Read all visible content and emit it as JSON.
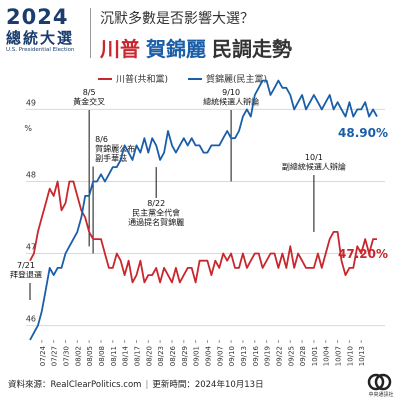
{
  "header": {
    "logo_year": "2024",
    "logo_title": "總統大選",
    "logo_sub": "U.S. Presidential Election",
    "subtitle": "沉默多數是否影響大選？",
    "title_trump": "川普",
    "title_harris": "賀錦麗",
    "title_rest": "民調走勢"
  },
  "footer": {
    "source": "資料來源：RealClearPolitics.com",
    "updated": "更新時間：2024年10月13日",
    "logo_text": "中央通訊社"
  },
  "colors": {
    "trump": "#c8272d",
    "harris": "#1a5ea8",
    "grid": "#d9d9d9",
    "text": "#333333"
  },
  "chart_data": {
    "type": "line",
    "title": "",
    "xlabel": "",
    "ylabel": "%",
    "ylim": [
      45.8,
      49.2
    ],
    "yticks": [
      46,
      47,
      48,
      49
    ],
    "grid": true,
    "legend_position": "top-left",
    "x_ticks": [
      "07/24",
      "07/27",
      "07/30",
      "08/02",
      "08/05",
      "08/08",
      "08/11",
      "08/14",
      "08/17",
      "08/20",
      "08/23",
      "08/26",
      "08/29",
      "09/01",
      "09/04",
      "09/07",
      "09/10",
      "09/13",
      "09/16",
      "09/19",
      "09/22",
      "09/25",
      "09/28",
      "10/01",
      "10/04",
      "10/07",
      "10/10",
      "10/13"
    ],
    "x_start": "07/21",
    "series": [
      {
        "name": "川普(共和黨)",
        "color": "#c8272d",
        "end_label": "47.20%",
        "values": [
          46.9,
          47.0,
          47.3,
          47.5,
          47.7,
          47.9,
          47.8,
          48.0,
          47.6,
          47.7,
          48.0,
          48.0,
          47.8,
          47.6,
          47.5,
          47.3,
          47.2,
          47.2,
          47.2,
          47.0,
          46.8,
          46.8,
          47.0,
          46.9,
          46.7,
          46.9,
          46.6,
          46.7,
          46.9,
          46.6,
          46.7,
          46.7,
          46.8,
          46.6,
          46.8,
          46.7,
          46.6,
          46.8,
          46.6,
          46.7,
          46.8,
          46.8,
          46.6,
          46.9,
          46.9,
          46.9,
          46.7,
          46.9,
          46.8,
          47.0,
          46.9,
          47.0,
          46.8,
          46.8,
          47.0,
          46.8,
          46.9,
          47.0,
          47.0,
          46.8,
          46.9,
          47.0,
          47.0,
          46.8,
          47.0,
          46.8,
          47.1,
          46.8,
          47.0,
          46.9,
          46.8,
          46.8,
          46.8,
          47.0,
          46.8,
          47.0,
          47.2,
          47.3,
          47.3,
          46.9,
          46.7,
          46.8,
          46.8,
          47.1,
          47.0,
          47.2,
          47.0,
          47.2,
          47.2
        ]
      },
      {
        "name": "賀錦麗(民主黨)",
        "color": "#1a5ea8",
        "end_label": "48.90%",
        "values": [
          45.8,
          45.9,
          46.0,
          46.2,
          46.5,
          46.8,
          46.7,
          46.8,
          46.8,
          47.0,
          47.1,
          47.2,
          47.3,
          47.5,
          47.8,
          47.8,
          48.0,
          48.0,
          48.1,
          48.0,
          48.1,
          48.2,
          48.2,
          48.3,
          48.5,
          48.4,
          48.3,
          48.5,
          48.4,
          48.6,
          48.4,
          48.6,
          48.5,
          48.3,
          48.4,
          48.7,
          48.5,
          48.4,
          48.5,
          48.6,
          48.5,
          48.6,
          48.5,
          48.5,
          48.4,
          48.4,
          48.5,
          48.5,
          48.5,
          48.6,
          48.7,
          48.6,
          48.6,
          48.7,
          48.9,
          49.0,
          48.9,
          49.2,
          49.3,
          49.4,
          49.4,
          49.2,
          49.3,
          49.4,
          49.3,
          49.3,
          49.2,
          49.0,
          49.1,
          49.2,
          49.0,
          49.1,
          49.2,
          49.1,
          49.0,
          49.1,
          49.2,
          49.0,
          49.1,
          49.0,
          48.9,
          49.1,
          48.9,
          49.0,
          49.0,
          49.1,
          48.9,
          49.0,
          48.9
        ]
      }
    ],
    "annotations": [
      {
        "lines": [
          "7/21",
          "拜登退選"
        ],
        "date": "07/21"
      },
      {
        "lines": [
          "8/5",
          "黃金交叉"
        ],
        "date": "08/05"
      },
      {
        "lines": [
          "8/6",
          "賀錦麗公布",
          "副手華茲"
        ],
        "date": "08/06"
      },
      {
        "lines": [
          "8/22",
          "民主黨全代會",
          "通過提名賀錦麗"
        ],
        "date": "08/22"
      },
      {
        "lines": [
          "9/10",
          "總統候選人辯論"
        ],
        "date": "09/10"
      },
      {
        "lines": [
          "10/1",
          "副總統候選人辯論"
        ],
        "date": "10/01"
      }
    ]
  }
}
